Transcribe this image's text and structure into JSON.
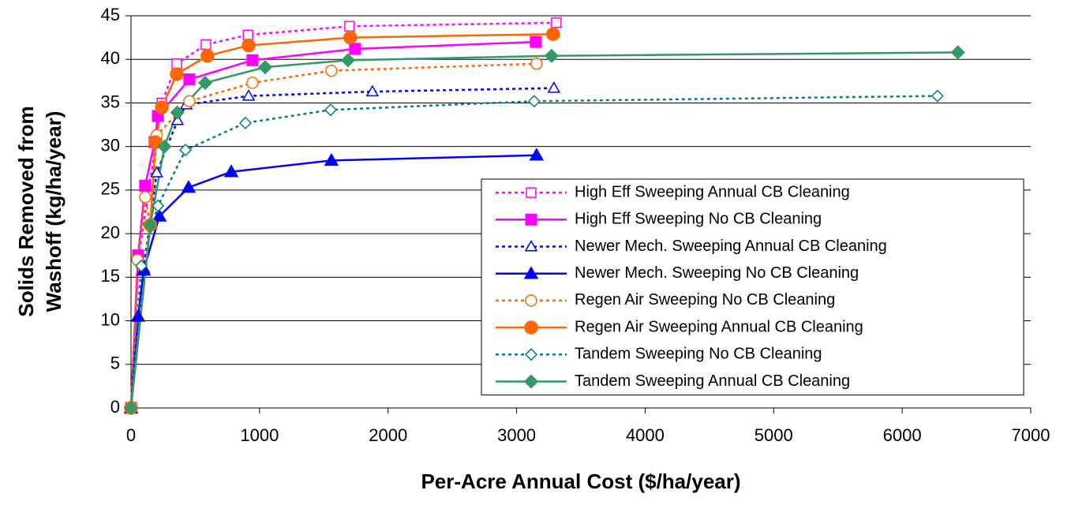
{
  "chart_data": {
    "type": "line",
    "x_label": "Per-Acre Annual Cost ($/ha/year)",
    "y_label": [
      "Solids Removed from",
      "Washoff (kg/ha/year)"
    ],
    "xlim": [
      0,
      7000
    ],
    "xticks": [
      0,
      1000,
      2000,
      3000,
      4000,
      5000,
      6000,
      7000
    ],
    "ylim": [
      0,
      45
    ],
    "yticks": [
      0,
      5,
      10,
      15,
      20,
      25,
      30,
      35,
      40,
      45
    ],
    "grid": true,
    "legend": "lower-right",
    "series": [
      {
        "name": "High Eff Sweeping Annual CB Cleaning",
        "color": "#ff00ff",
        "marker": "square",
        "filled": false,
        "dashed": true,
        "x": [
          0,
          60,
          200,
          240,
          356,
          583,
          910,
          1700,
          3309
        ],
        "values": [
          0,
          17.5,
          31,
          35,
          39.5,
          41.7,
          42.8,
          43.8,
          44.2
        ]
      },
      {
        "name": "High Eff Sweeping No CB Cleaning",
        "color": "#ff00ff",
        "marker": "square",
        "filled": true,
        "dashed": false,
        "x": [
          0,
          55,
          110,
          184,
          209,
          454,
          945,
          1743,
          3149
        ],
        "values": [
          0,
          17.5,
          25.5,
          30.5,
          33.5,
          37.7,
          39.9,
          41.2,
          42
        ]
      },
      {
        "name": "Newer Mech. Sweeping Annual CB Cleaning",
        "color": "#0000ff",
        "marker": "triangle",
        "filled": false,
        "dashed": true,
        "x": [
          0,
          100,
          200,
          362,
          430,
          915,
          1878,
          3290
        ],
        "values": [
          0,
          16,
          27,
          33,
          34.8,
          35.8,
          36.3,
          36.7
        ]
      },
      {
        "name": "Newer Mech. Sweeping No CB Cleaning",
        "color": "#0000ff",
        "marker": "triangle",
        "filled": true,
        "dashed": false,
        "x": [
          0,
          55,
          98,
          221,
          448,
          780,
          1559,
          3155
        ],
        "values": [
          0,
          10.5,
          15.8,
          22,
          25.3,
          27.1,
          28.4,
          29
        ]
      },
      {
        "name": "Regen Air Sweeping No CB Cleaning",
        "color": "#ff6600",
        "marker": "circle",
        "filled": false,
        "dashed": true,
        "x": [
          0,
          50,
          110,
          150,
          200,
          454,
          945,
          1559,
          3155
        ],
        "values": [
          0,
          17,
          24.2,
          21,
          31.3,
          35.2,
          37.3,
          38.7,
          39.5
        ]
      },
      {
        "name": "Regen Air Sweeping Annual CB Cleaning",
        "color": "#ff6600",
        "marker": "circle",
        "filled": true,
        "dashed": false,
        "x": [
          0,
          150,
          190,
          240,
          356,
          595,
          915,
          1706,
          3284
        ],
        "values": [
          0,
          21,
          30.5,
          34.5,
          38.3,
          40.4,
          41.6,
          42.5,
          42.9
        ]
      },
      {
        "name": "Tandem Sweeping No CB Cleaning",
        "color": "#008080",
        "marker": "diamond",
        "filled": false,
        "dashed": true,
        "x": [
          0,
          80,
          210,
          424,
          890,
          1553,
          3137,
          6274
        ],
        "values": [
          0,
          16.3,
          23.2,
          29.6,
          32.7,
          34.2,
          35.2,
          35.8
        ]
      },
      {
        "name": "Tandem Sweeping Annual CB Cleaning",
        "color": "#339966",
        "marker": "diamond",
        "filled": true,
        "dashed": false,
        "x": [
          0,
          150,
          260,
          360,
          577,
          1044,
          1688,
          3272,
          6433
        ],
        "values": [
          0,
          21,
          30,
          33.9,
          37.3,
          39.1,
          39.9,
          40.4,
          40.8
        ]
      }
    ]
  }
}
